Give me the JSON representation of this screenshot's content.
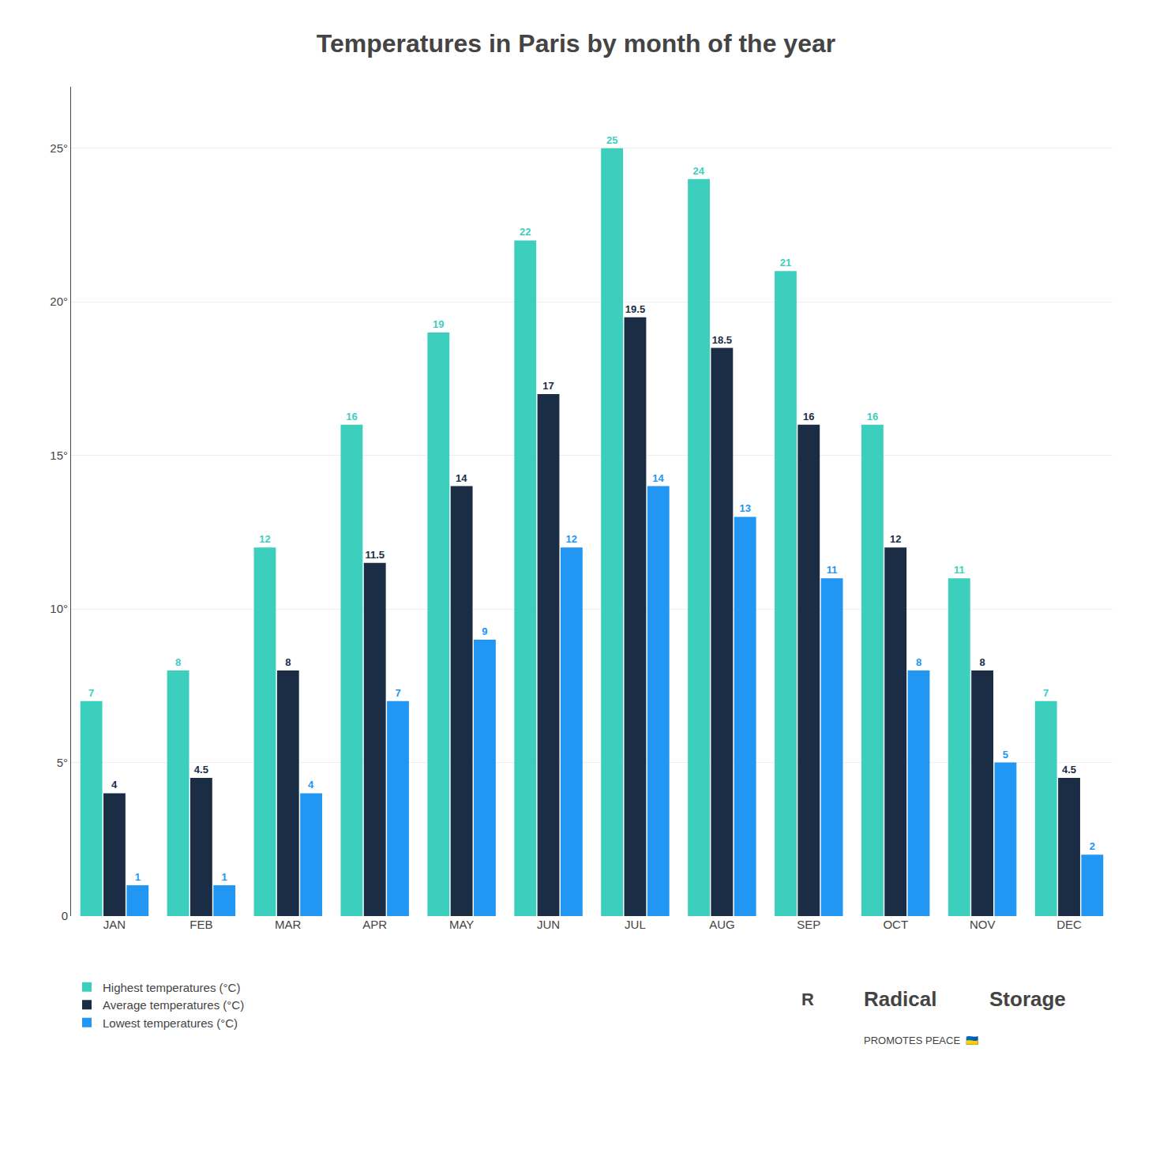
{
  "chart_data": {
    "type": "bar",
    "title": "Temperatures in Paris by month of the year",
    "categories": [
      "JAN",
      "FEB",
      "MAR",
      "APR",
      "MAY",
      "JUN",
      "JUL",
      "AUG",
      "SEP",
      "OCT",
      "NOV",
      "DEC"
    ],
    "series": [
      {
        "name": "Highest temperatures (°C)",
        "color": "#3DCFBE",
        "values": [
          7,
          8,
          12,
          16,
          19,
          22,
          25,
          24,
          21,
          16,
          11,
          7
        ]
      },
      {
        "name": "Average temperatures (°C)",
        "color": "#1A2D45",
        "values": [
          4,
          4.5,
          8,
          11.5,
          14,
          17,
          19.5,
          18.5,
          16,
          12,
          8,
          4.5
        ]
      },
      {
        "name": "Lowest temperatures (°C)",
        "color": "#2196F3",
        "values": [
          1,
          1,
          4,
          7,
          9,
          12,
          14,
          13,
          11,
          8,
          5,
          2
        ]
      }
    ],
    "ylim": [
      0,
      27
    ],
    "yticks": [
      0,
      {
        "value": 5,
        "label": "5°"
      },
      {
        "value": 10,
        "label": "10°"
      },
      {
        "value": 15,
        "label": "15°"
      },
      {
        "value": 20,
        "label": "20°"
      },
      {
        "value": 25,
        "label": "25°"
      }
    ],
    "grid": true,
    "legend": "lower left",
    "data_labels": true,
    "annotations": [
      "R",
      "Radical",
      "Storage",
      "PROMOTES PEACE  🇺🇦"
    ]
  }
}
